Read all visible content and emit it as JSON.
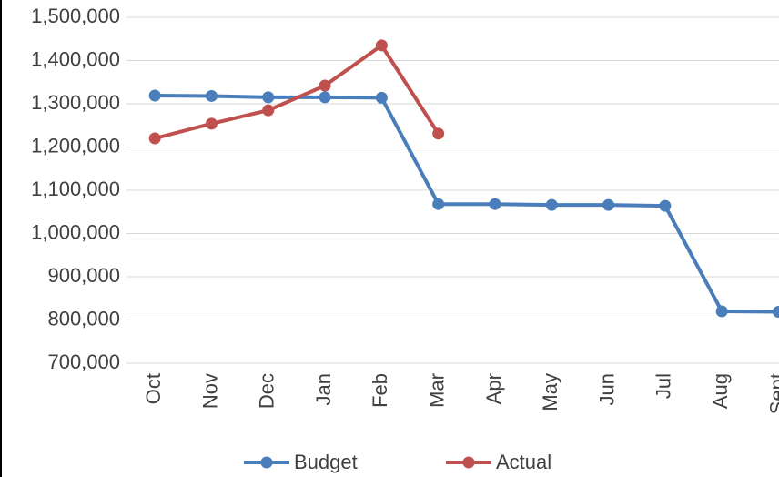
{
  "chart_data": {
    "type": "line",
    "categories": [
      "Oct",
      "Nov",
      "Dec",
      "Jan",
      "Feb",
      "Mar",
      "Apr",
      "May",
      "Jun",
      "Jul",
      "Aug",
      "Sept"
    ],
    "series": [
      {
        "name": "Budget",
        "color": "#4a7ebb",
        "values": [
          1319000,
          1318000,
          1315000,
          1315000,
          1314000,
          1068000,
          1068000,
          1066000,
          1066000,
          1064000,
          820000,
          819000
        ]
      },
      {
        "name": "Actual",
        "color": "#c0504d",
        "values": [
          1220000,
          1254000,
          1285000,
          1342000,
          1435000,
          1231000,
          null,
          null,
          null,
          null,
          null,
          null
        ]
      }
    ],
    "ylim": [
      700000,
      1500000
    ],
    "yticks": [
      {
        "value": 700000,
        "label": "700,000"
      },
      {
        "value": 800000,
        "label": "800,000"
      },
      {
        "value": 900000,
        "label": "900,000"
      },
      {
        "value": 1000000,
        "label": "1,000,000"
      },
      {
        "value": 1100000,
        "label": "1,100,000"
      },
      {
        "value": 1200000,
        "label": "1,200,000"
      },
      {
        "value": 1300000,
        "label": "1,300,000"
      },
      {
        "value": 1400000,
        "label": "1,400,000"
      },
      {
        "value": 1500000,
        "label": "1,500,000"
      }
    ],
    "grid": true,
    "legend": "bottom"
  }
}
